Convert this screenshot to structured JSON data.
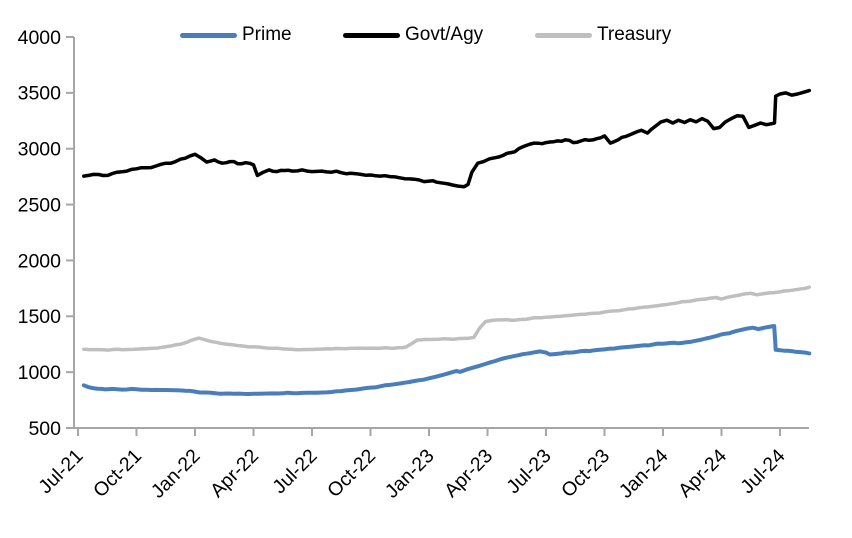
{
  "chart_data": {
    "type": "line",
    "title": "",
    "xlabel": "",
    "ylabel": "",
    "ylim": [
      500,
      4000
    ],
    "y_ticks": [
      4000,
      3500,
      3000,
      2500,
      2000,
      1500,
      1000,
      500
    ],
    "x_tick_labels": [
      "Jul-21",
      "Oct-21",
      "Jan-22",
      "Apr-22",
      "Jul-22",
      "Oct-22",
      "Jan-23",
      "Apr-23",
      "Jul-23",
      "Oct-23",
      "Jan-24",
      "Apr-24",
      "Jul-24"
    ],
    "x_unit": "months since Jul-2021, quarterly ticks",
    "x_range": [
      0.3,
      37.5
    ],
    "legend_position": "top",
    "grid": false,
    "axis_color": "#a6a6a6",
    "series": [
      {
        "name": "Prime",
        "color": "#4a7ebb",
        "stroke_width": 4,
        "noise_amp": 3.5,
        "points": [
          [
            0.3,
            882
          ],
          [
            0.5,
            868
          ],
          [
            0.8,
            855
          ],
          [
            1.2,
            850
          ],
          [
            1.6,
            848
          ],
          [
            2,
            847
          ],
          [
            2.5,
            845
          ],
          [
            3,
            846
          ],
          [
            3.5,
            843
          ],
          [
            4,
            841
          ],
          [
            4.5,
            840
          ],
          [
            5,
            838
          ],
          [
            5.5,
            833
          ],
          [
            6,
            826
          ],
          [
            6.5,
            818
          ],
          [
            7,
            812
          ],
          [
            7.5,
            808
          ],
          [
            8,
            806
          ],
          [
            8.5,
            805
          ],
          [
            9,
            806
          ],
          [
            9.5,
            808
          ],
          [
            10,
            810
          ],
          [
            10.5,
            811
          ],
          [
            11,
            812
          ],
          [
            11.5,
            814
          ],
          [
            12,
            816
          ],
          [
            12.5,
            818
          ],
          [
            13,
            822
          ],
          [
            13.5,
            830
          ],
          [
            14,
            840
          ],
          [
            14.5,
            850
          ],
          [
            15,
            862
          ],
          [
            15.5,
            873
          ],
          [
            16,
            886
          ],
          [
            16.5,
            898
          ],
          [
            17,
            912
          ],
          [
            17.5,
            928
          ],
          [
            18,
            945
          ],
          [
            18.5,
            966
          ],
          [
            18.8,
            980
          ],
          [
            19.1,
            995
          ],
          [
            19.4,
            1010
          ],
          [
            19.6,
            1002
          ],
          [
            19.9,
            1022
          ],
          [
            20.2,
            1038
          ],
          [
            20.5,
            1052
          ],
          [
            20.8,
            1068
          ],
          [
            21.1,
            1085
          ],
          [
            21.4,
            1100
          ],
          [
            21.7,
            1118
          ],
          [
            22,
            1130
          ],
          [
            22.3,
            1142
          ],
          [
            22.6,
            1152
          ],
          [
            23,
            1165
          ],
          [
            23.4,
            1178
          ],
          [
            23.7,
            1186
          ],
          [
            24,
            1175
          ],
          [
            24.2,
            1158
          ],
          [
            24.5,
            1162
          ],
          [
            24.8,
            1168
          ],
          [
            25.2,
            1175
          ],
          [
            25.6,
            1182
          ],
          [
            26,
            1190
          ],
          [
            26.5,
            1196
          ],
          [
            27,
            1204
          ],
          [
            27.5,
            1212
          ],
          [
            28,
            1222
          ],
          [
            28.5,
            1230
          ],
          [
            29,
            1240
          ],
          [
            29.5,
            1248
          ],
          [
            30,
            1255
          ],
          [
            30.4,
            1262
          ],
          [
            30.8,
            1258
          ],
          [
            31.2,
            1268
          ],
          [
            31.6,
            1278
          ],
          [
            32,
            1292
          ],
          [
            32.4,
            1308
          ],
          [
            32.8,
            1326
          ],
          [
            33.2,
            1344
          ],
          [
            33.6,
            1360
          ],
          [
            34,
            1378
          ],
          [
            34.3,
            1390
          ],
          [
            34.6,
            1398
          ],
          [
            34.9,
            1385
          ],
          [
            35.2,
            1398
          ],
          [
            35.5,
            1408
          ],
          [
            35.7,
            1413
          ],
          [
            35.78,
            1200
          ],
          [
            36,
            1196
          ],
          [
            36.4,
            1192
          ],
          [
            36.8,
            1182
          ],
          [
            37.1,
            1178
          ],
          [
            37.5,
            1168
          ]
        ]
      },
      {
        "name": "Govt/Agy",
        "color": "#000000",
        "stroke_width": 3.5,
        "noise_amp": 8,
        "points": [
          [
            0.3,
            2755
          ],
          [
            0.8,
            2770
          ],
          [
            1.3,
            2760
          ],
          [
            2,
            2790
          ],
          [
            2.5,
            2800
          ],
          [
            3,
            2820
          ],
          [
            3.5,
            2830
          ],
          [
            4,
            2845
          ],
          [
            4.5,
            2870
          ],
          [
            5,
            2885
          ],
          [
            5.5,
            2915
          ],
          [
            6,
            2950
          ],
          [
            6.3,
            2920
          ],
          [
            6.6,
            2880
          ],
          [
            7,
            2900
          ],
          [
            7.4,
            2870
          ],
          [
            7.8,
            2885
          ],
          [
            8.2,
            2865
          ],
          [
            8.6,
            2875
          ],
          [
            9,
            2855
          ],
          [
            9.2,
            2760
          ],
          [
            9.5,
            2790
          ],
          [
            9.8,
            2810
          ],
          [
            10.2,
            2795
          ],
          [
            10.6,
            2805
          ],
          [
            11,
            2800
          ],
          [
            11.5,
            2810
          ],
          [
            12,
            2795
          ],
          [
            12.5,
            2800
          ],
          [
            13,
            2790
          ],
          [
            13.5,
            2785
          ],
          [
            14,
            2780
          ],
          [
            14.5,
            2770
          ],
          [
            15,
            2765
          ],
          [
            15.5,
            2755
          ],
          [
            16,
            2750
          ],
          [
            16.5,
            2740
          ],
          [
            17,
            2730
          ],
          [
            17.5,
            2720
          ],
          [
            18,
            2710
          ],
          [
            18.4,
            2700
          ],
          [
            18.8,
            2690
          ],
          [
            19.2,
            2675
          ],
          [
            19.5,
            2665
          ],
          [
            19.8,
            2660
          ],
          [
            20,
            2680
          ],
          [
            20.2,
            2790
          ],
          [
            20.5,
            2870
          ],
          [
            20.8,
            2885
          ],
          [
            21.1,
            2910
          ],
          [
            21.4,
            2920
          ],
          [
            21.8,
            2940
          ],
          [
            22.2,
            2965
          ],
          [
            22.6,
            3000
          ],
          [
            23,
            3030
          ],
          [
            23.4,
            3050
          ],
          [
            23.8,
            3045
          ],
          [
            24.2,
            3060
          ],
          [
            24.6,
            3070
          ],
          [
            25,
            3080
          ],
          [
            25.4,
            3055
          ],
          [
            25.8,
            3070
          ],
          [
            26.2,
            3075
          ],
          [
            26.6,
            3090
          ],
          [
            27,
            3115
          ],
          [
            27.3,
            3050
          ],
          [
            27.7,
            3080
          ],
          [
            28.1,
            3110
          ],
          [
            28.5,
            3140
          ],
          [
            28.9,
            3165
          ],
          [
            29.2,
            3140
          ],
          [
            29.6,
            3200
          ],
          [
            29.9,
            3240
          ],
          [
            30.2,
            3255
          ],
          [
            30.5,
            3230
          ],
          [
            30.8,
            3255
          ],
          [
            31.1,
            3235
          ],
          [
            31.4,
            3260
          ],
          [
            31.7,
            3240
          ],
          [
            32,
            3270
          ],
          [
            32.3,
            3245
          ],
          [
            32.6,
            3180
          ],
          [
            32.9,
            3190
          ],
          [
            33.2,
            3240
          ],
          [
            33.5,
            3270
          ],
          [
            33.8,
            3295
          ],
          [
            34.1,
            3290
          ],
          [
            34.4,
            3190
          ],
          [
            34.7,
            3210
          ],
          [
            35,
            3230
          ],
          [
            35.3,
            3215
          ],
          [
            35.6,
            3225
          ],
          [
            35.72,
            3230
          ],
          [
            35.78,
            3470
          ],
          [
            36,
            3490
          ],
          [
            36.3,
            3500
          ],
          [
            36.6,
            3480
          ],
          [
            36.9,
            3490
          ],
          [
            37.2,
            3505
          ],
          [
            37.5,
            3520
          ]
        ]
      },
      {
        "name": "Treasury",
        "color": "#bfbfbf",
        "stroke_width": 3.5,
        "noise_amp": 3.5,
        "points": [
          [
            0.3,
            1205
          ],
          [
            0.8,
            1202
          ],
          [
            1.3,
            1200
          ],
          [
            1.8,
            1203
          ],
          [
            2.3,
            1200
          ],
          [
            2.8,
            1204
          ],
          [
            3.3,
            1208
          ],
          [
            3.8,
            1214
          ],
          [
            4.3,
            1222
          ],
          [
            4.8,
            1235
          ],
          [
            5.2,
            1248
          ],
          [
            5.6,
            1268
          ],
          [
            6,
            1295
          ],
          [
            6.2,
            1305
          ],
          [
            6.5,
            1290
          ],
          [
            6.9,
            1272
          ],
          [
            7.3,
            1258
          ],
          [
            7.7,
            1248
          ],
          [
            8.1,
            1240
          ],
          [
            8.5,
            1233
          ],
          [
            9,
            1226
          ],
          [
            9.5,
            1220
          ],
          [
            10,
            1213
          ],
          [
            10.5,
            1208
          ],
          [
            11,
            1204
          ],
          [
            11.5,
            1202
          ],
          [
            12,
            1203
          ],
          [
            12.5,
            1206
          ],
          [
            13,
            1208
          ],
          [
            13.5,
            1211
          ],
          [
            14,
            1213
          ],
          [
            14.5,
            1215
          ],
          [
            15,
            1213
          ],
          [
            15.5,
            1214
          ],
          [
            16,
            1215
          ],
          [
            16.4,
            1218
          ],
          [
            16.8,
            1222
          ],
          [
            17.1,
            1255
          ],
          [
            17.4,
            1288
          ],
          [
            18,
            1292
          ],
          [
            18.5,
            1295
          ],
          [
            19,
            1297
          ],
          [
            19.5,
            1300
          ],
          [
            20,
            1302
          ],
          [
            20.3,
            1312
          ],
          [
            20.6,
            1395
          ],
          [
            20.9,
            1452
          ],
          [
            21.2,
            1462
          ],
          [
            21.6,
            1468
          ],
          [
            22,
            1470
          ],
          [
            22.4,
            1465
          ],
          [
            22.8,
            1472
          ],
          [
            23.2,
            1480
          ],
          [
            23.6,
            1486
          ],
          [
            24,
            1492
          ],
          [
            24.5,
            1498
          ],
          [
            25,
            1505
          ],
          [
            25.5,
            1512
          ],
          [
            26,
            1518
          ],
          [
            26.5,
            1528
          ],
          [
            27,
            1538
          ],
          [
            27.5,
            1548
          ],
          [
            28,
            1558
          ],
          [
            28.5,
            1568
          ],
          [
            29,
            1580
          ],
          [
            29.5,
            1590
          ],
          [
            30,
            1602
          ],
          [
            30.4,
            1612
          ],
          [
            30.8,
            1622
          ],
          [
            31.2,
            1632
          ],
          [
            31.6,
            1642
          ],
          [
            32,
            1652
          ],
          [
            32.4,
            1662
          ],
          [
            32.7,
            1668
          ],
          [
            33,
            1655
          ],
          [
            33.3,
            1670
          ],
          [
            33.6,
            1680
          ],
          [
            33.9,
            1690
          ],
          [
            34.2,
            1700
          ],
          [
            34.5,
            1706
          ],
          [
            34.8,
            1692
          ],
          [
            35.1,
            1700
          ],
          [
            35.4,
            1708
          ],
          [
            35.7,
            1712
          ],
          [
            36,
            1718
          ],
          [
            36.4,
            1728
          ],
          [
            36.8,
            1738
          ],
          [
            37.1,
            1746
          ],
          [
            37.5,
            1760
          ]
        ]
      }
    ]
  }
}
